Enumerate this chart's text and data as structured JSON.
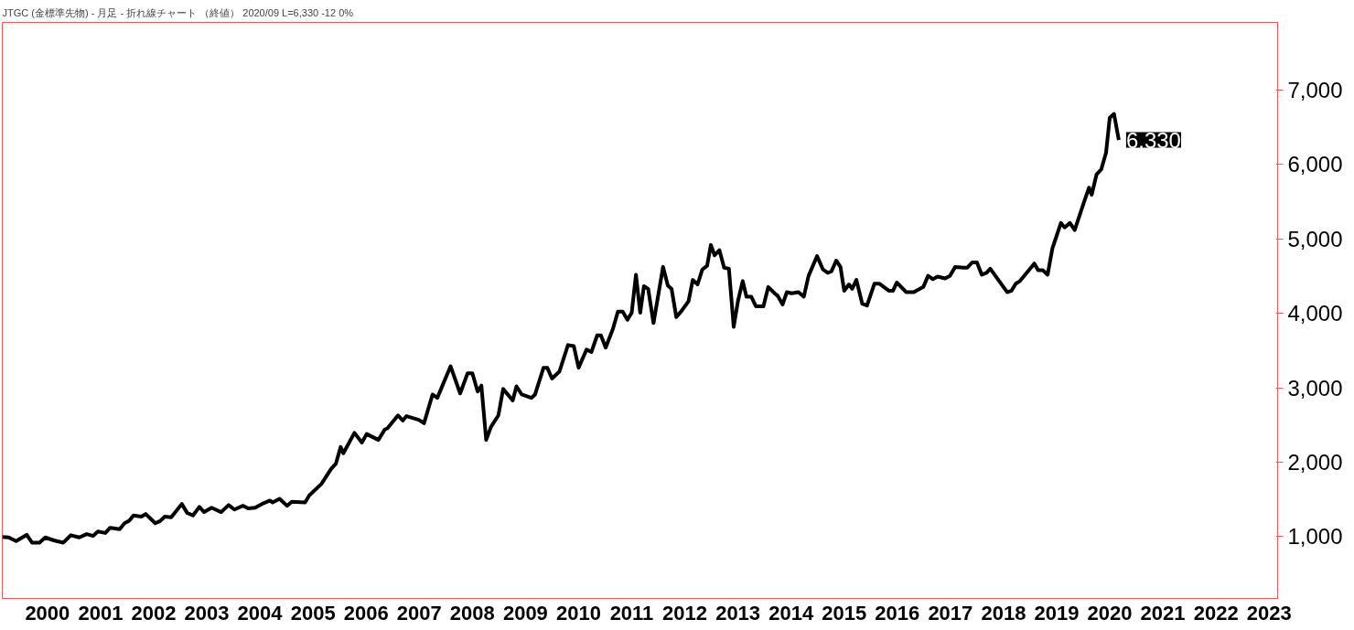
{
  "chart_data": {
    "type": "line",
    "title": "JTGC (金標準先物) - 月足 - 折れ線チャート （終値） 2020/09 L=6,330 -12 0%",
    "x": [
      1999.65,
      1999.77,
      1999.91,
      2000.11,
      2000.21,
      2000.35,
      2000.46,
      2000.62,
      2000.8,
      2000.94,
      2001.1,
      2001.24,
      2001.36,
      2001.45,
      2001.59,
      2001.68,
      2001.86,
      2001.95,
      2002.04,
      2002.12,
      2002.27,
      2002.35,
      2002.53,
      2002.62,
      2002.71,
      2002.83,
      2003.03,
      2003.13,
      2003.24,
      2003.36,
      2003.45,
      2003.59,
      2003.77,
      2003.91,
      2004.02,
      2004.18,
      2004.28,
      2004.41,
      2004.57,
      2004.69,
      2004.74,
      2004.87,
      2005.01,
      2005.1,
      2005.35,
      2005.43,
      2005.66,
      2005.84,
      2005.93,
      2006.02,
      2006.07,
      2006.28,
      2006.42,
      2006.51,
      2006.73,
      2006.85,
      2006.9,
      2007.1,
      2007.19,
      2007.26,
      2007.49,
      2007.59,
      2007.75,
      2007.84,
      2008.09,
      2008.27,
      2008.41,
      2008.5,
      2008.6,
      2008.67,
      2008.76,
      2008.85,
      2008.99,
      2009.08,
      2009.26,
      2009.33,
      2009.43,
      2009.61,
      2009.68,
      2009.84,
      2009.91,
      2010.0,
      2010.14,
      2010.3,
      2010.41,
      2010.5,
      2010.65,
      2010.74,
      2010.85,
      2010.92,
      2011.01,
      2011.15,
      2011.24,
      2011.33,
      2011.42,
      2011.5,
      2011.58,
      2011.66,
      2011.73,
      2011.81,
      2011.91,
      2012.09,
      2012.18,
      2012.25,
      2012.34,
      2012.44,
      2012.57,
      2012.65,
      2012.74,
      2012.83,
      2012.92,
      2012.99,
      2013.06,
      2013.15,
      2013.24,
      2013.33,
      2013.42,
      2013.5,
      2013.59,
      2013.66,
      2013.75,
      2013.84,
      2013.98,
      2014.07,
      2014.19,
      2014.25,
      2014.34,
      2014.42,
      2014.51,
      2014.64,
      2014.74,
      2014.83,
      2014.99,
      2015.1,
      2015.19,
      2015.26,
      2015.35,
      2015.43,
      2015.5,
      2015.59,
      2015.65,
      2015.73,
      2015.84,
      2015.93,
      2016.07,
      2016.16,
      2016.34,
      2016.42,
      2016.49,
      2016.67,
      2016.81,
      2016.99,
      2017.08,
      2017.17,
      2017.26,
      2017.4,
      2017.49,
      2017.59,
      2017.75,
      2017.82,
      2017.91,
      2018.0,
      2018.09,
      2018.18,
      2018.25,
      2018.57,
      2018.65,
      2018.73,
      2018.81,
      2019.08,
      2019.15,
      2019.24,
      2019.33,
      2019.42,
      2019.47,
      2019.58,
      2019.65,
      2019.75,
      2019.84,
      2020.0,
      2020.11,
      2020.16,
      2020.25,
      2020.34,
      2020.43,
      2020.5,
      2020.58,
      2020.67
    ],
    "series": [
      {
        "color": "#000000",
        "values": [
          995,
          990,
          940,
          1025,
          920,
          920,
          990,
          950,
          920,
          1020,
          990,
          1035,
          1010,
          1070,
          1050,
          1120,
          1100,
          1180,
          1215,
          1285,
          1270,
          1305,
          1180,
          1210,
          1270,
          1260,
          1440,
          1320,
          1285,
          1400,
          1330,
          1390,
          1330,
          1425,
          1365,
          1415,
          1380,
          1390,
          1450,
          1485,
          1460,
          1510,
          1415,
          1470,
          1460,
          1555,
          1710,
          1910,
          1980,
          2205,
          2120,
          2395,
          2265,
          2380,
          2300,
          2440,
          2455,
          2630,
          2560,
          2620,
          2570,
          2525,
          2910,
          2865,
          3290,
          2925,
          3195,
          3195,
          2950,
          3030,
          2300,
          2475,
          2630,
          2985,
          2830,
          3020,
          2910,
          2865,
          2910,
          3270,
          3270,
          3125,
          3220,
          3575,
          3560,
          3270,
          3515,
          3480,
          3705,
          3705,
          3540,
          3800,
          4025,
          4025,
          3915,
          4010,
          4520,
          4010,
          4365,
          4330,
          3870,
          4625,
          4375,
          4330,
          3950,
          4035,
          4165,
          4450,
          4390,
          4590,
          4640,
          4920,
          4780,
          4850,
          4615,
          4600,
          3820,
          4165,
          4435,
          4225,
          4225,
          4095,
          4095,
          4355,
          4270,
          4235,
          4120,
          4285,
          4270,
          4285,
          4225,
          4505,
          4770,
          4590,
          4545,
          4565,
          4710,
          4625,
          4305,
          4390,
          4330,
          4450,
          4130,
          4105,
          4400,
          4400,
          4305,
          4305,
          4415,
          4285,
          4285,
          4355,
          4505,
          4460,
          4495,
          4470,
          4505,
          4625,
          4615,
          4615,
          4685,
          4685,
          4520,
          4545,
          4600,
          4285,
          4305,
          4400,
          4435,
          4670,
          4580,
          4580,
          4520,
          4875,
          4980,
          5215,
          5155,
          5215,
          5120,
          5465,
          5690,
          5595,
          5865,
          5935,
          6160,
          6630,
          6680,
          6330
        ]
      }
    ],
    "xlim": [
      1999.65,
      2023.66
    ],
    "xticks": [
      {
        "value": 2000.5,
        "label": "2000"
      },
      {
        "value": 2001.5,
        "label": "2001"
      },
      {
        "value": 2002.5,
        "label": "2002"
      },
      {
        "value": 2003.5,
        "label": "2003"
      },
      {
        "value": 2004.5,
        "label": "2004"
      },
      {
        "value": 2005.5,
        "label": "2005"
      },
      {
        "value": 2006.5,
        "label": "2006"
      },
      {
        "value": 2007.5,
        "label": "2007"
      },
      {
        "value": 2008.5,
        "label": "2008"
      },
      {
        "value": 2009.5,
        "label": "2009"
      },
      {
        "value": 2010.5,
        "label": "2010"
      },
      {
        "value": 2011.5,
        "label": "2011"
      },
      {
        "value": 2012.5,
        "label": "2012"
      },
      {
        "value": 2013.5,
        "label": "2013"
      },
      {
        "value": 2014.5,
        "label": "2014"
      },
      {
        "value": 2015.5,
        "label": "2015"
      },
      {
        "value": 2016.5,
        "label": "2016"
      },
      {
        "value": 2017.5,
        "label": "2017"
      },
      {
        "value": 2018.5,
        "label": "2018"
      },
      {
        "value": 2019.5,
        "label": "2019"
      },
      {
        "value": 2020.5,
        "label": "2020"
      },
      {
        "value": 2021.5,
        "label": "2021"
      },
      {
        "value": 2022.5,
        "label": "2022"
      },
      {
        "value": 2023.5,
        "label": "2023"
      }
    ],
    "ylim": [
      170,
      7910
    ],
    "yticks": [
      {
        "value": 1000,
        "label": "1,000"
      },
      {
        "value": 2000,
        "label": "2,000"
      },
      {
        "value": 3000,
        "label": "3,000"
      },
      {
        "value": 4000,
        "label": "4,000"
      },
      {
        "value": 5000,
        "label": "5,000"
      },
      {
        "value": 6000,
        "label": "6,000"
      },
      {
        "value": 7000,
        "label": "7,000"
      }
    ],
    "annotations": [
      {
        "text": "6,330",
        "x": 2020.67,
        "y": 6330
      }
    ],
    "grid": false,
    "marker": "none",
    "line_style": "solid"
  }
}
